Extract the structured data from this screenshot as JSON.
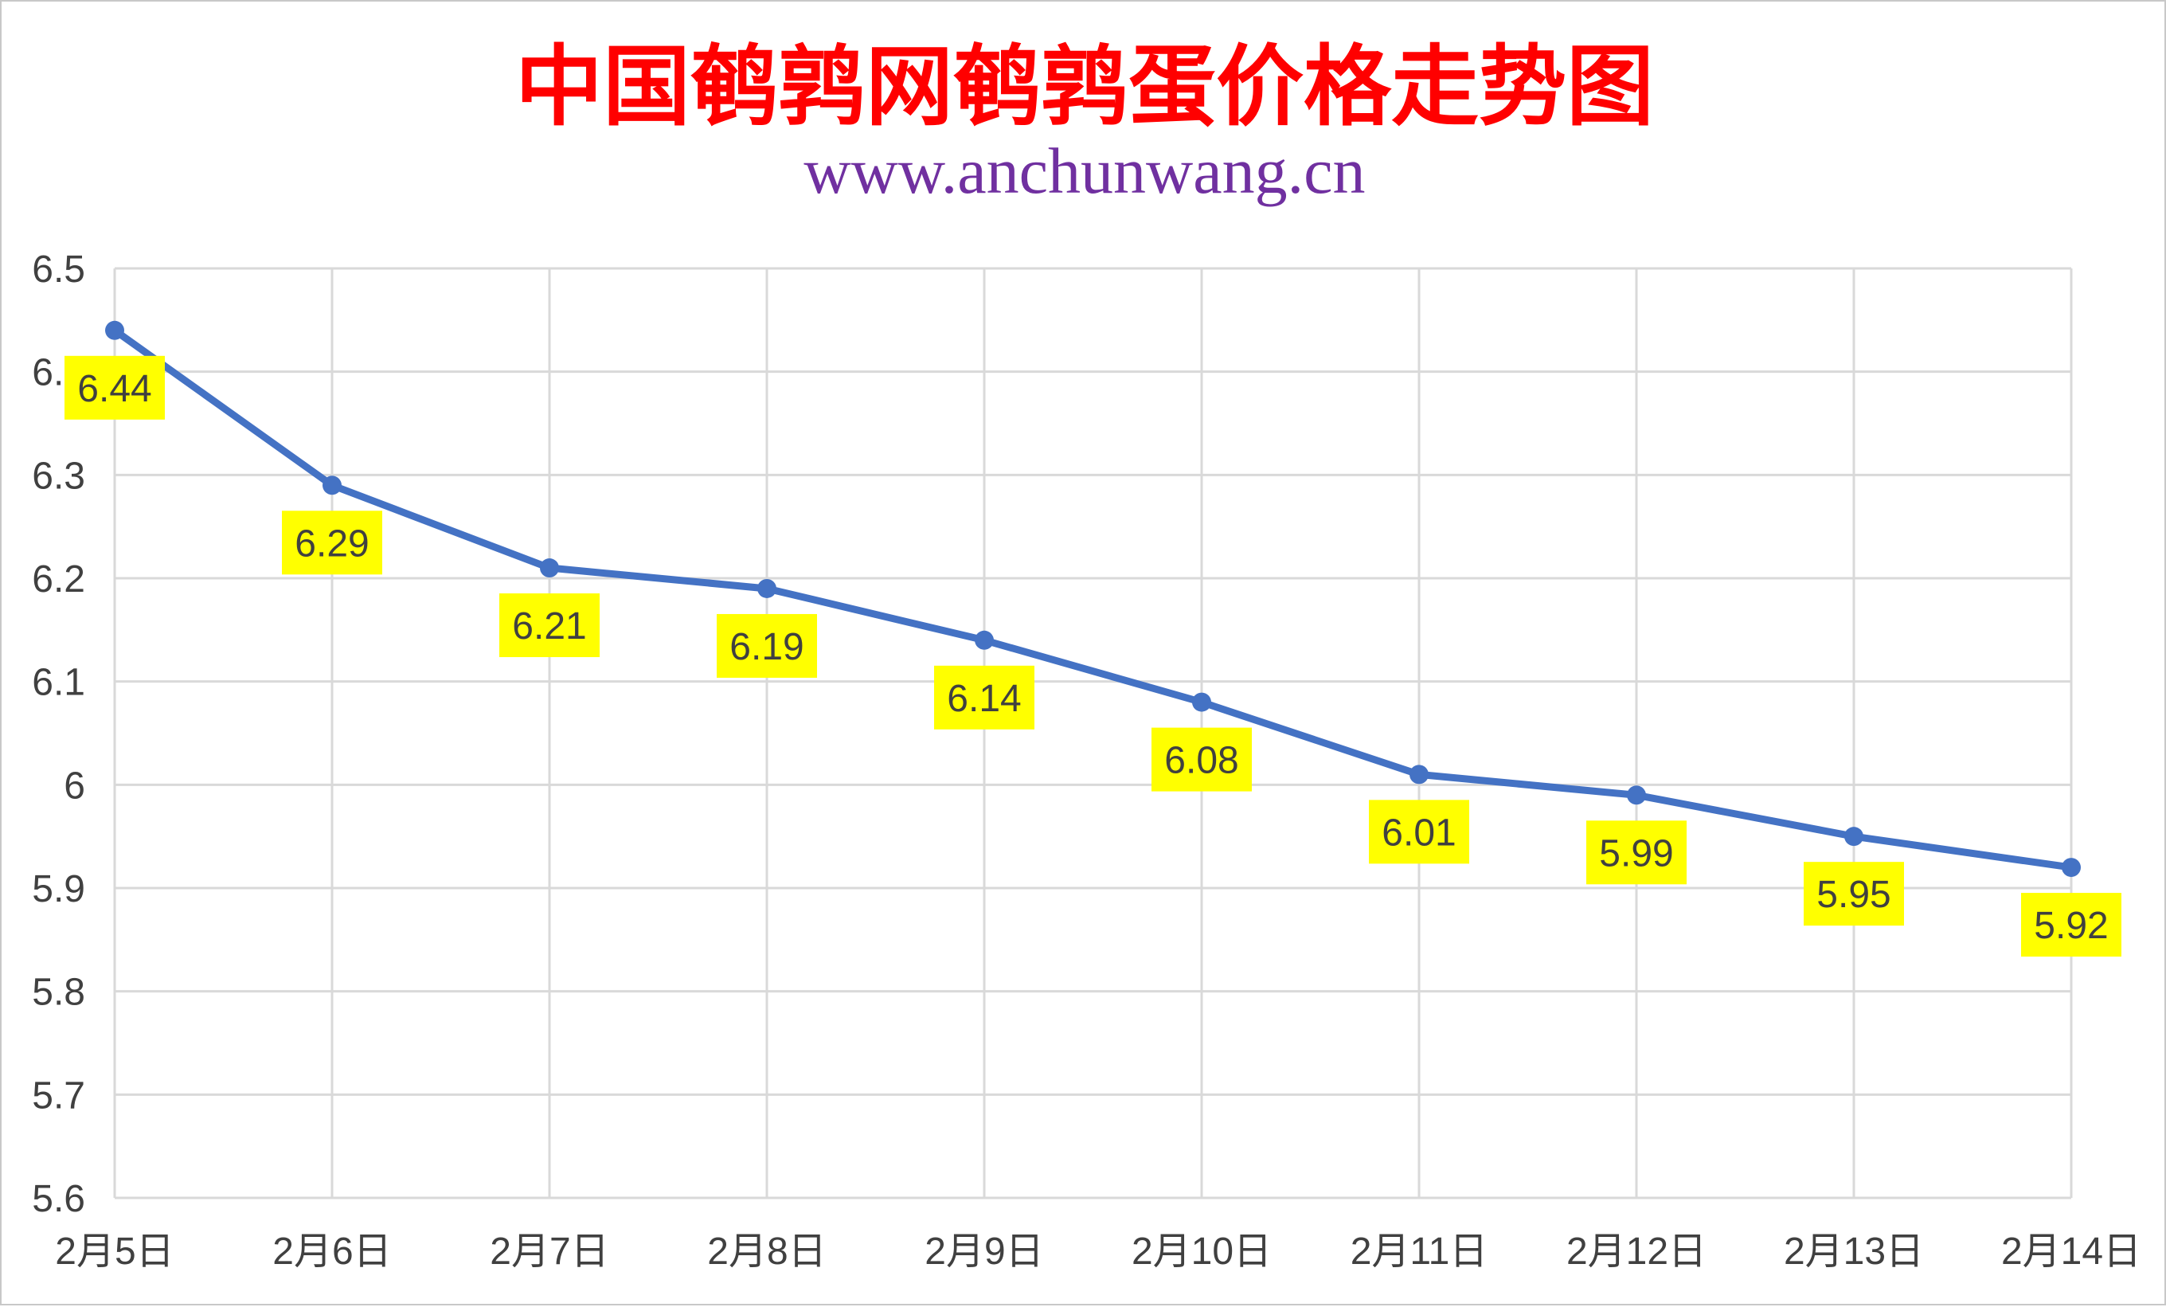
{
  "chart_data": {
    "type": "line",
    "title": "中国鹌鹑网鹌鹑蛋价格走势图",
    "subtitle": "www.anchunwang.cn",
    "xlabel": "",
    "ylabel": "",
    "categories": [
      "2月5日",
      "2月6日",
      "2月7日",
      "2月8日",
      "2月9日",
      "2月10日",
      "2月11日",
      "2月12日",
      "2月13日",
      "2月14日"
    ],
    "series": [
      {
        "values": [
          6.44,
          6.29,
          6.21,
          6.19,
          6.14,
          6.08,
          6.01,
          5.99,
          5.95,
          5.92
        ]
      }
    ],
    "data_labels": [
      "6.44",
      "6.29",
      "6.21",
      "6.19",
      "6.14",
      "6.08",
      "6.01",
      "5.99",
      "5.95",
      "5.92"
    ],
    "ylim": [
      5.6,
      6.5
    ],
    "yticks": [
      "5.6",
      "5.7",
      "5.8",
      "5.9",
      "6",
      "6.1",
      "6.2",
      "6.3",
      "6.4",
      "6.5"
    ],
    "grid": true,
    "legend": "none",
    "colors": {
      "line": "#4472c4",
      "label_bg": "#ffff00",
      "title": "#ff0000",
      "subtitle": "#7030a0",
      "grid": "#d9d9d9"
    }
  }
}
